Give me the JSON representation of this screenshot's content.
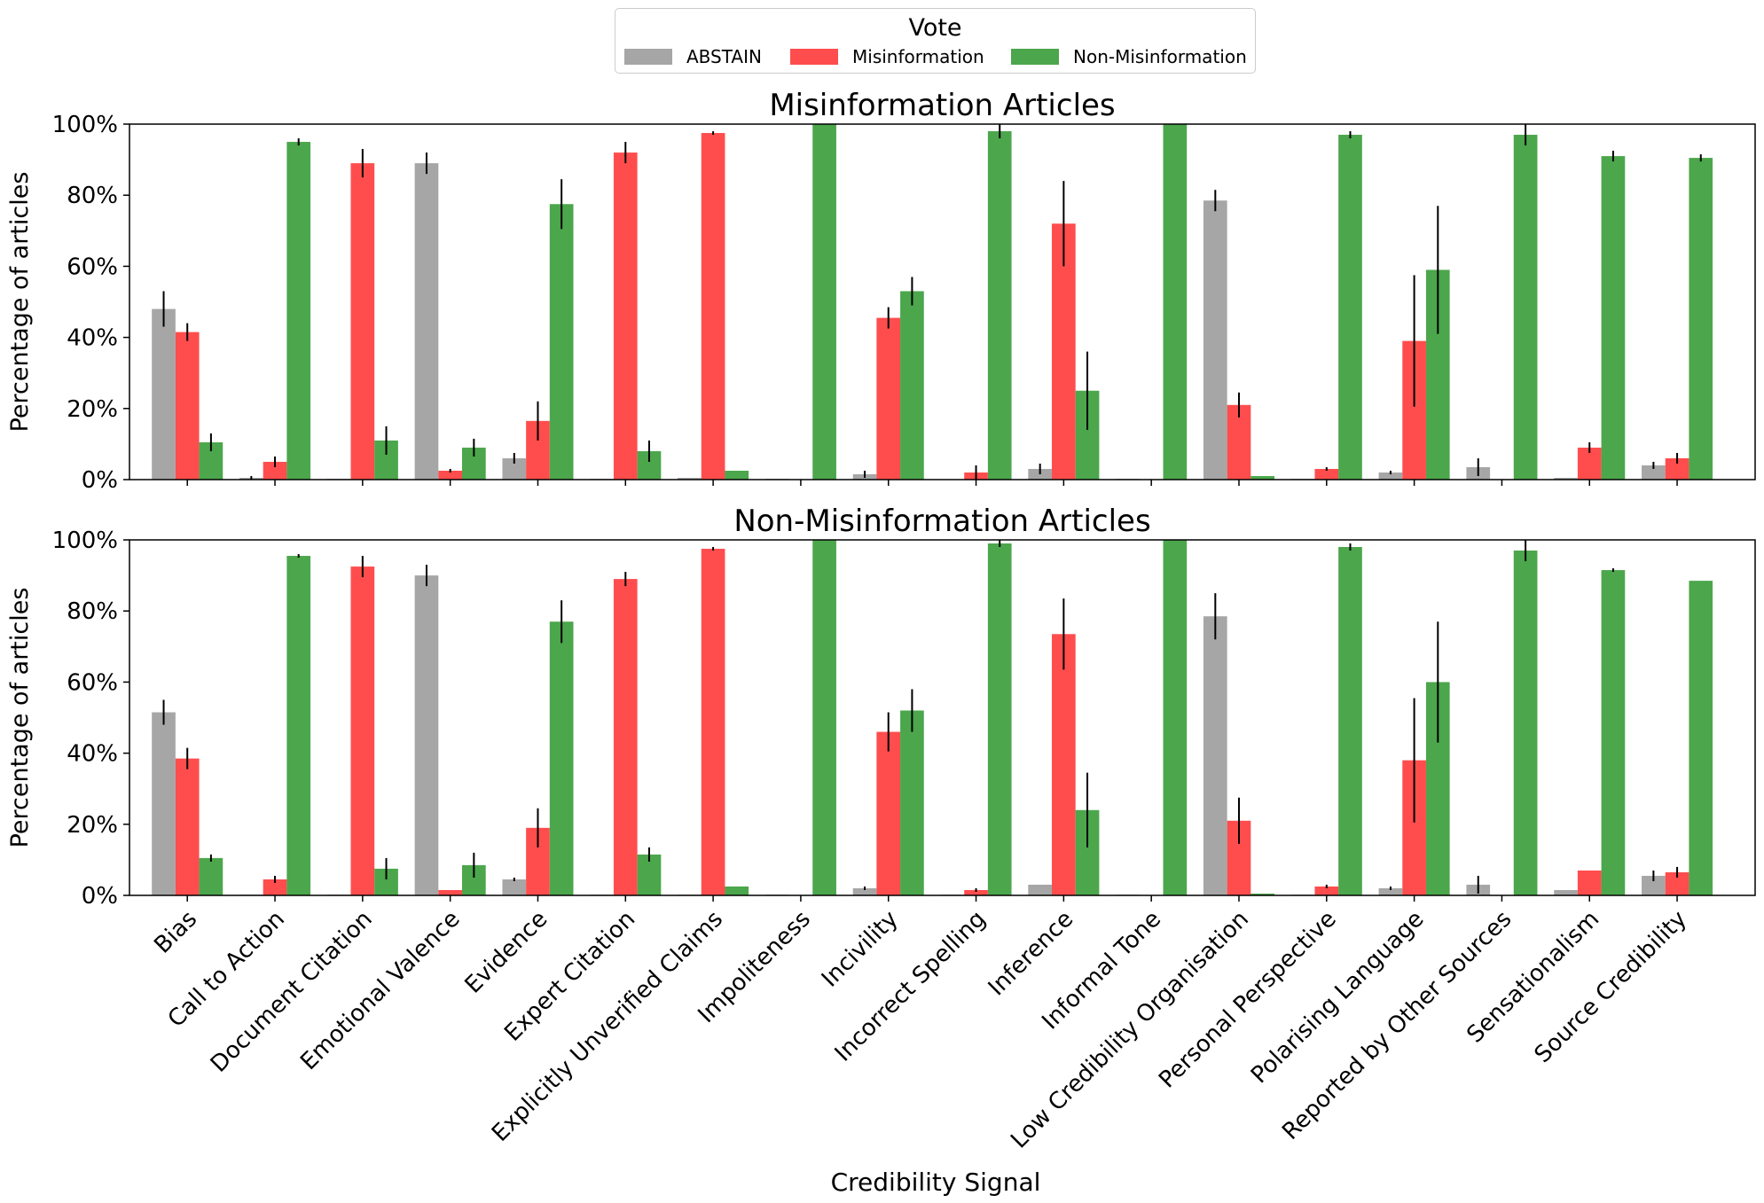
{
  "legend": {
    "title": "Vote",
    "items": [
      {
        "label": "ABSTAIN",
        "color": "#a6a6a6"
      },
      {
        "label": "Misinformation",
        "color": "#ff4d4d"
      },
      {
        "label": "Non-Misinformation",
        "color": "#4ca64c"
      }
    ]
  },
  "chart_data": {
    "type": "bar",
    "xlabel": "Credibility Signal",
    "categories": [
      "Bias",
      "Call to Action",
      "Document Citation",
      "Emotional Valence",
      "Evidence",
      "Expert Citation",
      "Explicitly Unverified Claims",
      "Impoliteness",
      "Incivility",
      "Incorrect Spelling",
      "Inference",
      "Informal Tone",
      "Low Credibility Organisation",
      "Personal Perspective",
      "Polarising Language",
      "Reported by Other Sources",
      "Sensationalism",
      "Source Credibility"
    ],
    "yticks": [
      "0%",
      "20%",
      "40%",
      "60%",
      "80%",
      "100%"
    ],
    "legend_placement": "top-center",
    "grid": false,
    "panels": [
      {
        "title": "Misinformation Articles",
        "ylabel": "Percentage of articles",
        "ylim": [
          0,
          100
        ],
        "series": [
          {
            "name": "ABSTAIN",
            "values": [
              48,
              0.5,
              0.2,
              89,
              6,
              0.2,
              0.5,
              0.2,
              1.5,
              0,
              3,
              0.2,
              78.5,
              0.2,
              2,
              3.5,
              0.5,
              4
            ],
            "errors": [
              5,
              0.5,
              0,
              3,
              1.5,
              0,
              0,
              0,
              1,
              0,
              1.5,
              0,
              3,
              0,
              0.5,
              2.5,
              0,
              1
            ]
          },
          {
            "name": "Misinformation",
            "values": [
              41.5,
              5,
              89,
              2.5,
              16.5,
              92,
              97.5,
              0,
              45.5,
              2,
              72,
              0,
              21,
              3,
              39,
              0,
              9,
              6
            ],
            "errors": [
              2.5,
              1.5,
              4,
              0.5,
              5.5,
              3,
              0.5,
              0,
              3,
              2,
              12,
              0,
              3.5,
              0.5,
              18.5,
              0,
              1.5,
              1.5
            ]
          },
          {
            "name": "Non-Misinformation",
            "values": [
              10.5,
              95,
              11,
              9,
              77.5,
              8,
              2.5,
              100,
              53,
              98,
              25,
              100,
              1,
              97,
              59,
              97,
              91,
              90.5
            ],
            "errors": [
              2.5,
              1,
              4,
              2.5,
              7,
              3,
              0,
              0,
              4,
              2,
              11,
              0,
              0,
              1,
              18,
              3,
              1.5,
              1
            ]
          }
        ]
      },
      {
        "title": "Non-Misinformation Articles",
        "ylabel": "Percentage of articles",
        "ylim": [
          0,
          100
        ],
        "series": [
          {
            "name": "ABSTAIN",
            "values": [
              51.5,
              0.2,
              0.2,
              90,
              4.5,
              0.2,
              0.2,
              0.2,
              2,
              0.2,
              3,
              0.2,
              78.5,
              0.2,
              2,
              3,
              1.5,
              5.5
            ],
            "errors": [
              3.5,
              0,
              0,
              3,
              0.5,
              0,
              0,
              0,
              0.5,
              0,
              0,
              0,
              6.5,
              0,
              0.5,
              2.5,
              0,
              1.5
            ]
          },
          {
            "name": "Misinformation",
            "values": [
              38.5,
              4.5,
              92.5,
              1.5,
              19,
              89,
              97.5,
              0,
              46,
              1.5,
              73.5,
              0,
              21,
              2.5,
              38,
              0,
              7,
              6.5
            ],
            "errors": [
              3,
              1,
              3,
              0,
              5.5,
              2,
              0.5,
              0,
              5.5,
              0.5,
              10,
              0,
              6.5,
              0.5,
              17.5,
              0,
              0,
              1.5
            ]
          },
          {
            "name": "Non-Misinformation",
            "values": [
              10.5,
              95.5,
              7.5,
              8.5,
              77,
              11.5,
              2.5,
              100,
              52,
              99,
              24,
              100,
              0.5,
              98,
              60,
              97,
              91.5,
              88.5
            ],
            "errors": [
              1,
              0.5,
              3,
              3.5,
              6,
              2,
              0,
              0,
              6,
              1,
              10.5,
              0,
              0,
              1,
              17,
              3,
              0.5,
              0
            ]
          }
        ]
      }
    ]
  }
}
